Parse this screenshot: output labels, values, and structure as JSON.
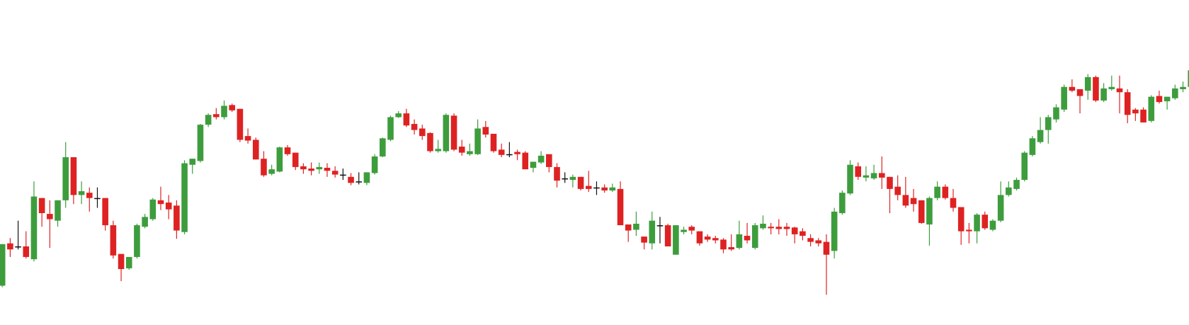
{
  "chart_data": {
    "type": "candlestick",
    "ylim": [
      0,
      430
    ],
    "up_color": "#3d9d3d",
    "down_color": "#de2222",
    "flat_color": "#111111",
    "open": [
      52,
      108,
      104,
      104,
      87,
      168,
      147,
      138,
      165,
      222,
      172,
      175,
      168,
      168,
      132,
      94,
      75,
      90,
      130,
      140,
      165,
      162,
      158,
      123,
      212,
      217,
      265,
      279,
      275,
      291,
      286,
      250,
      245,
      220,
      200,
      203,
      235,
      228,
      210,
      207,
      206,
      208,
      204,
      199,
      196,
      190,
      188,
      201,
      223,
      245,
      275,
      280,
      266,
      260,
      254,
      230,
      230,
      277,
      236,
      226,
      226,
      262,
      253,
      232,
      226,
      229,
      228,
      208,
      215,
      226,
      209,
      194,
      192,
      196,
      184,
      182,
      182,
      178,
      180,
      133,
      126,
      117,
      108,
      132,
      132,
      93,
      123,
      130,
      124,
      117,
      115,
      113,
      103,
      102,
      118,
      102,
      128,
      130,
      130,
      130,
      129,
      124,
      115,
      112,
      110,
      98,
      148,
      174,
      210,
      195,
      194,
      201,
      196,
      183,
      172,
      168,
      165,
      133,
      168,
      183,
      168,
      156,
      126,
      124,
      146,
      126,
      138,
      172,
      180,
      192,
      225,
      242,
      258,
      272,
      285,
      315,
      312,
      310,
      328,
      297,
      312,
      313,
      308,
      285,
      285,
      270,
      303,
      296,
      300,
      312,
      315,
      339
    ],
    "high": [
      107,
      115,
      138,
      124,
      190,
      168,
      165,
      165,
      242,
      222,
      190,
      182,
      182,
      168,
      138,
      94,
      90,
      134,
      147,
      168,
      183,
      172,
      165,
      218,
      220,
      266,
      280,
      287,
      297,
      293,
      286,
      260,
      248,
      230,
      212,
      236,
      238,
      228,
      214,
      215,
      215,
      214,
      210,
      207,
      201,
      202,
      202,
      226,
      248,
      277,
      283,
      286,
      272,
      265,
      255,
      245,
      280,
      280,
      245,
      240,
      272,
      270,
      253,
      240,
      242,
      232,
      230,
      216,
      230,
      226,
      214,
      202,
      199,
      196,
      204,
      190,
      186,
      187,
      190,
      133,
      150,
      117,
      150,
      143,
      134,
      132,
      130,
      132,
      124,
      120,
      118,
      115,
      120,
      138,
      135,
      135,
      145,
      135,
      140,
      135,
      130,
      128,
      120,
      115,
      120,
      155,
      178,
      218,
      215,
      210,
      212,
      223,
      196,
      198,
      196,
      180,
      165,
      170,
      190,
      186,
      180,
      156,
      135,
      148,
      150,
      140,
      190,
      190,
      195,
      230,
      250,
      275,
      278,
      292,
      318,
      325,
      312,
      332,
      330,
      320,
      330,
      330,
      312,
      287,
      288,
      304,
      310,
      302,
      318,
      322,
      342,
      342
    ],
    "low": [
      50,
      90,
      100,
      88,
      84,
      130,
      102,
      130,
      155,
      160,
      160,
      150,
      155,
      125,
      88,
      58,
      73,
      88,
      128,
      138,
      152,
      140,
      114,
      120,
      200,
      215,
      262,
      272,
      272,
      282,
      242,
      240,
      219,
      196,
      198,
      202,
      224,
      205,
      200,
      198,
      200,
      196,
      195,
      192,
      185,
      186,
      185,
      199,
      222,
      243,
      274,
      262,
      252,
      245,
      228,
      228,
      228,
      230,
      224,
      224,
      225,
      248,
      228,
      222,
      222,
      218,
      206,
      202,
      213,
      202,
      182,
      188,
      182,
      178,
      176,
      172,
      175,
      176,
      132,
      110,
      118,
      100,
      100,
      108,
      104,
      93,
      120,
      120,
      105,
      110,
      108,
      95,
      98,
      100,
      108,
      100,
      126,
      120,
      120,
      118,
      108,
      112,
      104,
      104,
      40,
      88,
      146,
      172,
      192,
      190,
      192,
      180,
      148,
      165,
      155,
      150,
      134,
      105,
      165,
      166,
      150,
      106,
      108,
      108,
      126,
      124,
      136,
      170,
      178,
      190,
      223,
      240,
      240,
      268,
      282,
      308,
      280,
      298,
      295,
      295,
      310,
      280,
      267,
      270,
      268,
      268,
      293,
      285,
      298,
      308,
      305,
      328
    ],
    "close": [
      107,
      100,
      104,
      90,
      170,
      148,
      140,
      165,
      222,
      172,
      177,
      168,
      168,
      132,
      92,
      74,
      90,
      132,
      143,
      166,
      160,
      153,
      125,
      214,
      220,
      265,
      278,
      275,
      290,
      284,
      245,
      244,
      219,
      198,
      206,
      235,
      226,
      209,
      206,
      204,
      209,
      204,
      199,
      199,
      188,
      190,
      202,
      223,
      247,
      275,
      280,
      264,
      258,
      250,
      230,
      233,
      278,
      232,
      228,
      230,
      260,
      252,
      230,
      225,
      226,
      226,
      206,
      216,
      224,
      209,
      191,
      194,
      196,
      180,
      180,
      182,
      178,
      182,
      132,
      125,
      134,
      109,
      138,
      132,
      104,
      132,
      126,
      125,
      108,
      113,
      112,
      100,
      100,
      120,
      112,
      132,
      134,
      128,
      127,
      127,
      120,
      118,
      110,
      108,
      93,
      150,
      175,
      212,
      196,
      198,
      201,
      195,
      180,
      172,
      158,
      160,
      135,
      168,
      183,
      168,
      155,
      124,
      124,
      146,
      128,
      138,
      172,
      182,
      192,
      228,
      247,
      258,
      275,
      288,
      315,
      310,
      303,
      328,
      297,
      313,
      315,
      308,
      278,
      280,
      268,
      302,
      295,
      302,
      313,
      315,
      337,
      330
    ]
  }
}
